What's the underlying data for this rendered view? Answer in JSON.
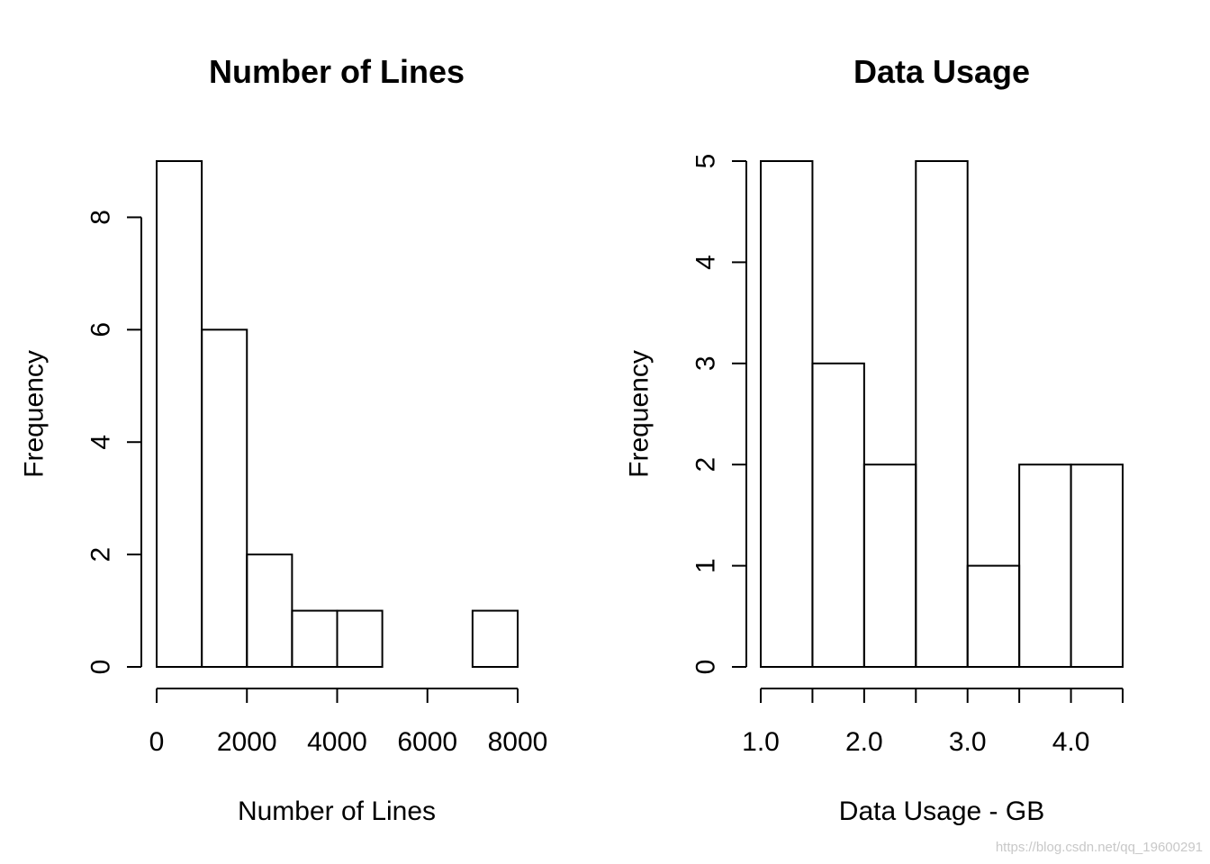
{
  "chart_data": [
    {
      "type": "bar",
      "title": "Number of Lines",
      "xlabel": "Number of Lines",
      "ylabel": "Frequency",
      "bin_edges": [
        0,
        1000,
        2000,
        3000,
        4000,
        5000,
        6000,
        7000,
        8000
      ],
      "values": [
        9,
        6,
        2,
        1,
        1,
        0,
        0,
        1
      ],
      "xticks": [
        0,
        2000,
        4000,
        6000,
        8000
      ],
      "xtick_labels": [
        "0",
        "2000",
        "4000",
        "6000",
        "8000"
      ],
      "yticks": [
        0,
        2,
        4,
        6,
        8
      ],
      "ytick_labels": [
        "0",
        "2",
        "4",
        "6",
        "8"
      ],
      "xlim": [
        0,
        8000
      ],
      "ylim": [
        0,
        9
      ]
    },
    {
      "type": "bar",
      "title": "Data Usage",
      "xlabel": "Data Usage - GB",
      "ylabel": "Frequency",
      "bin_edges": [
        1.0,
        1.5,
        2.0,
        2.5,
        3.0,
        3.5,
        4.0,
        4.5
      ],
      "values": [
        5,
        3,
        2,
        5,
        1,
        2,
        2
      ],
      "xticks": [
        1.0,
        1.5,
        2.0,
        2.5,
        3.0,
        3.5,
        4.0,
        4.5
      ],
      "xtick_labels": [
        "1.0",
        "",
        "2.0",
        "",
        "3.0",
        "",
        "4.0",
        ""
      ],
      "yticks": [
        0,
        1,
        2,
        3,
        4,
        5
      ],
      "ytick_labels": [
        "0",
        "1",
        "2",
        "3",
        "4",
        "5"
      ],
      "xlim": [
        1.0,
        4.5
      ],
      "ylim": [
        0,
        5
      ]
    }
  ],
  "watermark": "https://blog.csdn.net/qq_19600291"
}
